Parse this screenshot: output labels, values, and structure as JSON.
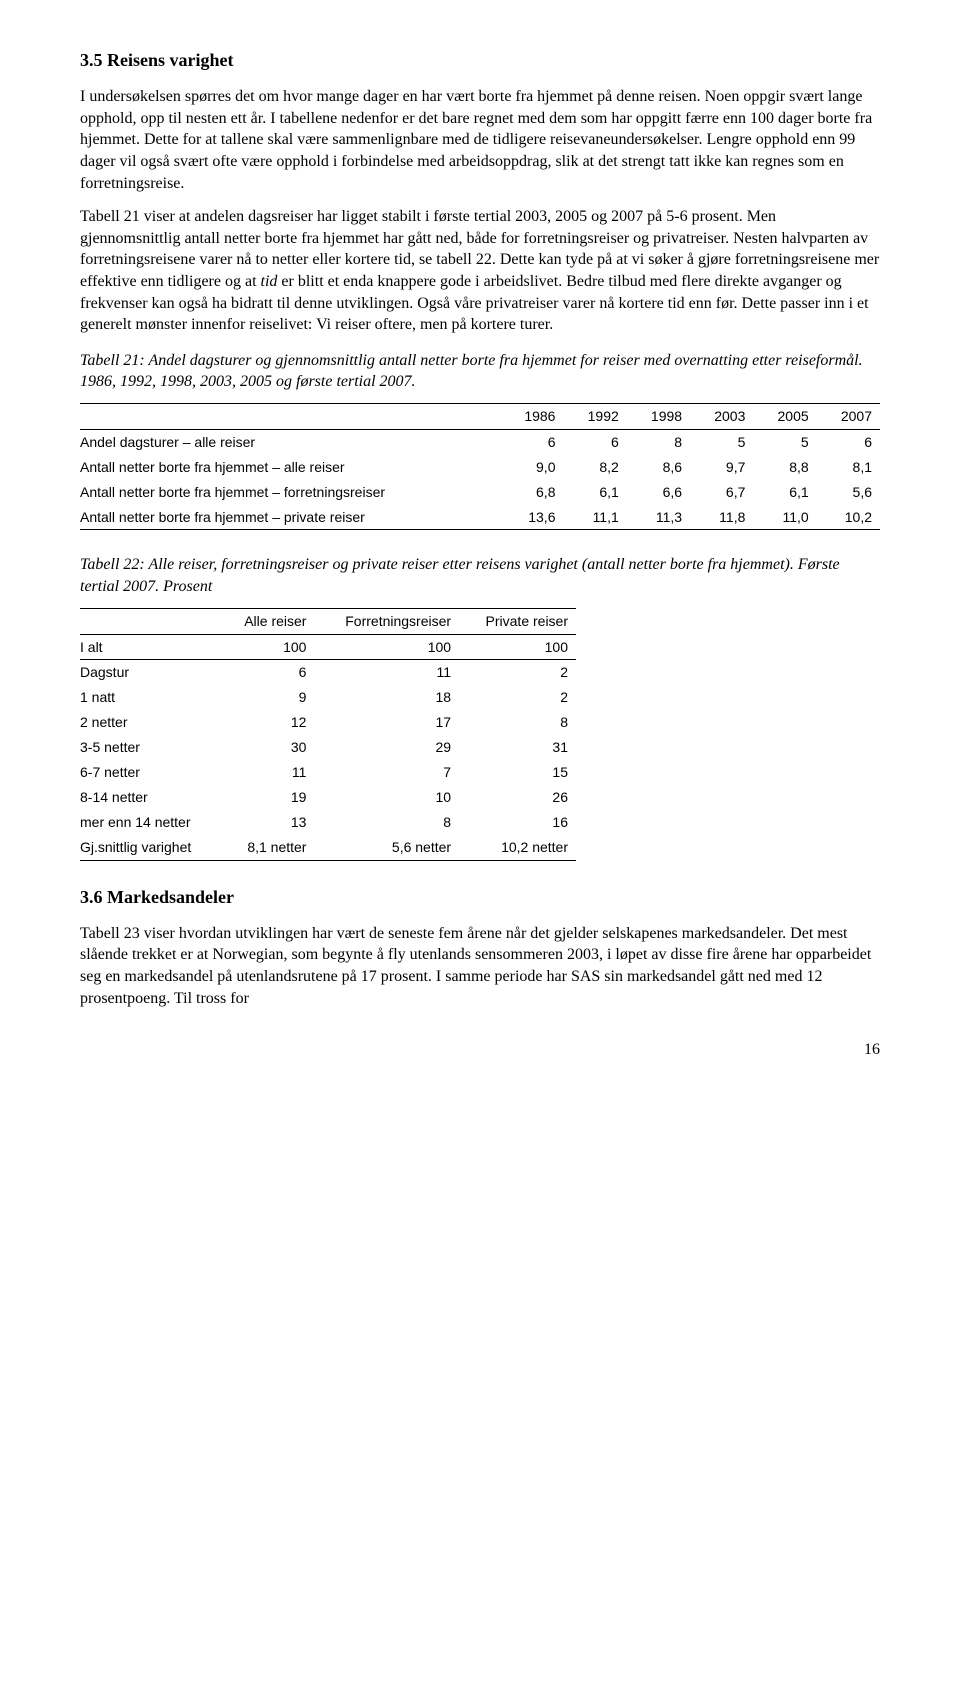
{
  "section35": {
    "heading": "3.5 Reisens varighet",
    "p1": "I undersøkelsen spørres det om hvor mange dager en har vært borte fra hjemmet på denne reisen. Noen oppgir svært lange opphold, opp til nesten ett år. I tabellene nedenfor er det bare regnet med dem som har oppgitt færre enn 100 dager borte fra hjemmet. Dette for at tallene skal være sammenlignbare med de tidligere reisevaneundersøkelser. Lengre opphold enn 99 dager vil også svært ofte være opphold i forbindelse med arbeidsoppdrag, slik at det strengt tatt ikke kan regnes som en forretningsreise.",
    "p2_a": "Tabell 21 viser at andelen dagsreiser har ligget stabilt i første tertial 2003, 2005 og 2007 på 5-6 prosent. Men gjennomsnittlig antall netter borte fra hjemmet har gått ned, både for forretningsreiser og privatreiser. Nesten halvparten av forretningsreisene varer nå to netter eller kortere tid, se tabell 22. Dette kan tyde på at vi søker å gjøre forretningsreisene mer effektive enn tidligere og at ",
    "p2_i": "tid",
    "p2_b": " er blitt et enda knappere gode i arbeidslivet. Bedre tilbud med flere direkte avganger og frekvenser kan også ha bidratt til denne utviklingen. Også våre privatreiser varer nå kortere tid enn før. Dette passer inn i et generelt mønster innenfor reiselivet: Vi reiser oftere, men på kortere turer."
  },
  "table21": {
    "caption": "Tabell 21: Andel dagsturer og gjennomsnittlig antall netter borte fra hjemmet for reiser med overnatting etter reiseformål. 1986, 1992, 1998, 2003, 2005 og første tertial 2007.",
    "headers": [
      "",
      "1986",
      "1992",
      "1998",
      "2003",
      "2005",
      "2007"
    ],
    "rows": [
      [
        "Andel dagsturer – alle reiser",
        "6",
        "6",
        "8",
        "5",
        "5",
        "6"
      ],
      [
        "Antall netter borte fra hjemmet – alle reiser",
        "9,0",
        "8,2",
        "8,6",
        "9,7",
        "8,8",
        "8,1"
      ],
      [
        "Antall netter borte fra hjemmet – forretningsreiser",
        "6,8",
        "6,1",
        "6,6",
        "6,7",
        "6,1",
        "5,6"
      ],
      [
        "Antall netter borte fra hjemmet – private reiser",
        "13,6",
        "11,1",
        "11,3",
        "11,8",
        "11,0",
        "10,2"
      ]
    ]
  },
  "table22": {
    "caption": "Tabell 22: Alle reiser, forretningsreiser og private reiser etter reisens varighet (antall netter borte fra hjemmet). Første tertial 2007. Prosent",
    "headers": [
      "",
      "Alle reiser",
      "Forretningsreiser",
      "Private reiser"
    ],
    "rows": [
      [
        "I alt",
        "100",
        "100",
        "100"
      ],
      [
        "Dagstur",
        "6",
        "11",
        "2"
      ],
      [
        "1 natt",
        "9",
        "18",
        "2"
      ],
      [
        "2 netter",
        "12",
        "17",
        "8"
      ],
      [
        "3-5 netter",
        "30",
        "29",
        "31"
      ],
      [
        "6-7 netter",
        "11",
        "7",
        "15"
      ],
      [
        "8-14 netter",
        "19",
        "10",
        "26"
      ],
      [
        "mer enn 14 netter",
        "13",
        "8",
        "16"
      ],
      [
        "Gj.snittlig varighet",
        "8,1 netter",
        "5,6 netter",
        "10,2 netter"
      ]
    ]
  },
  "section36": {
    "heading": "3.6 Markedsandeler",
    "p1": "Tabell 23 viser hvordan utviklingen har vært de seneste fem årene når det gjelder selskapenes markedsandeler. Det mest slående trekket er at Norwegian, som begynte å fly utenlands sensommeren 2003, i løpet av disse fire årene har opparbeidet seg en markedsandel på utenlandsrutene på 17 prosent. I samme periode har SAS sin markedsandel gått ned med 12 prosentpoeng. Til tross for"
  },
  "page_number": "16"
}
